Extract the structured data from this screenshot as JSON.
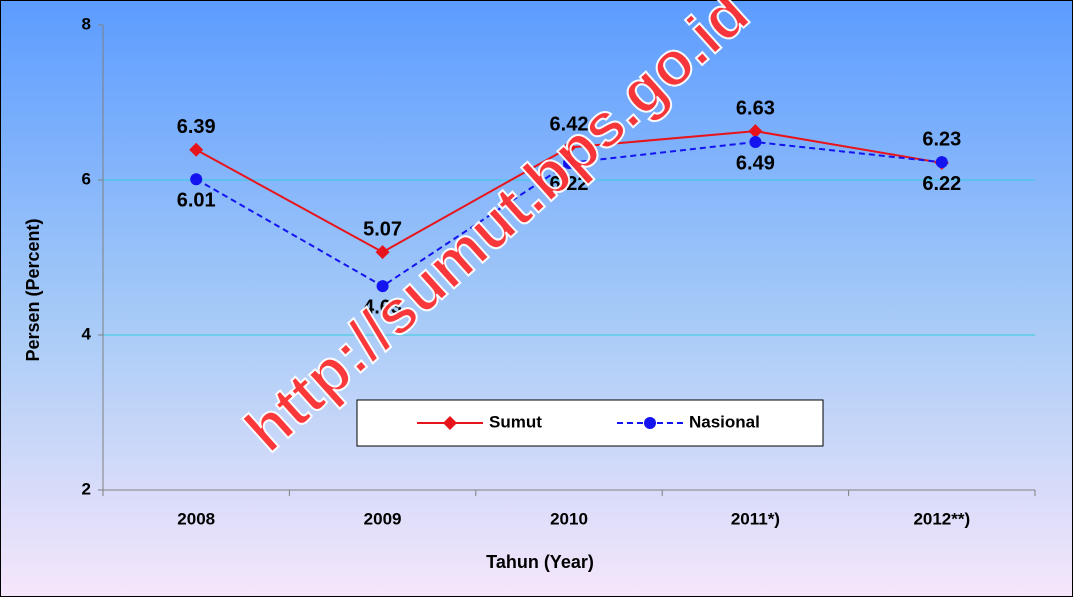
{
  "chart_data": {
    "type": "line",
    "categories": [
      "2008",
      "2009",
      "2010",
      "2011*)",
      "2012**)"
    ],
    "series": [
      {
        "name": "Sumut",
        "color": "#e8141b",
        "marker": "diamond",
        "dash": "solid",
        "values": [
          6.39,
          5.07,
          6.42,
          6.63,
          6.22
        ]
      },
      {
        "name": "Nasional",
        "color": "#1414f0",
        "marker": "circle",
        "dash": "dashed",
        "values": [
          6.01,
          4.63,
          6.22,
          6.49,
          6.23
        ]
      }
    ],
    "ylim": [
      2,
      8
    ],
    "yticks": [
      2,
      4,
      6,
      8
    ],
    "grid": true,
    "x_label": "Tahun (Year)",
    "y_label": "Persen (Percent)",
    "legend": "center",
    "watermark": "http://sumut.bps.go.id"
  }
}
